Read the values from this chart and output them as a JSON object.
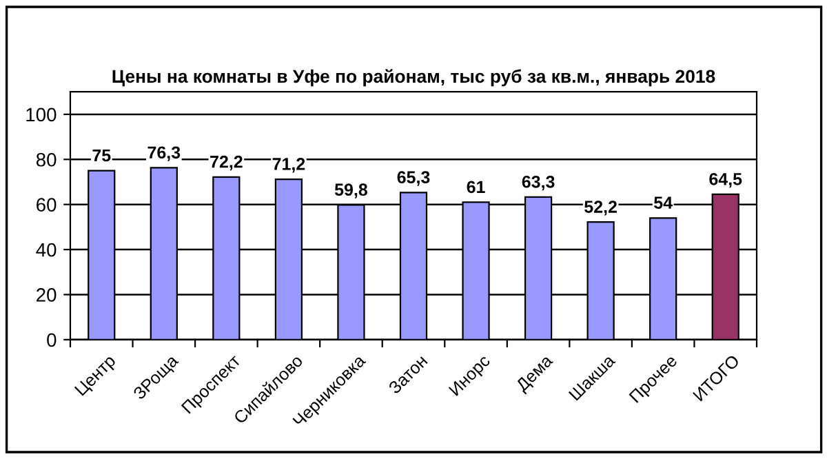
{
  "chart_data": {
    "type": "bar",
    "title": "Цены на комнаты в Уфе по районам, тыс руб за кв.м., январь 2018",
    "categories": [
      "Центр",
      "ЗРоща",
      "Проспект",
      "Сипайлово",
      "Черниковка",
      "Затон",
      "Инорс",
      "Дема",
      "Шакша",
      "Прочее",
      "ИТОГО"
    ],
    "values": [
      75,
      76.3,
      72.2,
      71.2,
      59.8,
      65.3,
      61,
      63.3,
      52.2,
      54,
      64.5
    ],
    "value_labels": [
      "75",
      "76,3",
      "72,2",
      "71,2",
      "59,8",
      "65,3",
      "61",
      "63,3",
      "52,2",
      "54",
      "64,5"
    ],
    "colors": [
      "#9999ff",
      "#9999ff",
      "#9999ff",
      "#9999ff",
      "#9999ff",
      "#9999ff",
      "#9999ff",
      "#9999ff",
      "#9999ff",
      "#9999ff",
      "#993366"
    ],
    "ylim": [
      0,
      110
    ],
    "yticks": [
      0,
      20,
      40,
      60,
      80,
      100
    ],
    "grid": "y"
  }
}
